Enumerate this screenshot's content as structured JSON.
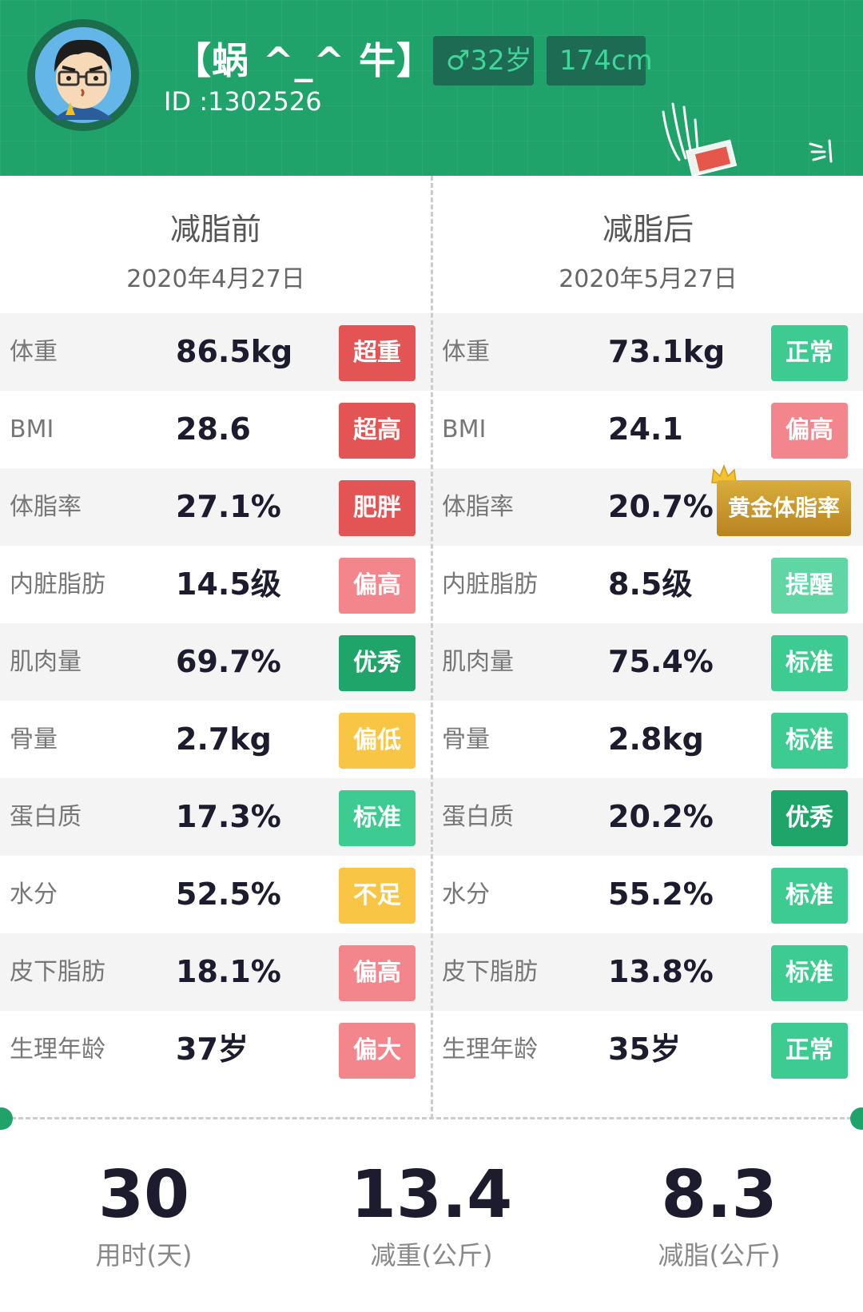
{
  "profile": {
    "name": "【蜗 ^_^ 牛】",
    "id_text": "ID :1302526",
    "gender_age": "♂32岁",
    "height": "174cm"
  },
  "before": {
    "title": "减脂前",
    "date": "2020年4月27日",
    "rows": [
      {
        "label": "体重",
        "value": "86.5kg",
        "status": "超重",
        "color": "#e35454"
      },
      {
        "label": "BMI",
        "value": "28.6",
        "status": "超高",
        "color": "#e35454"
      },
      {
        "label": "体脂率",
        "value": "27.1%",
        "status": "肥胖",
        "color": "#e35454"
      },
      {
        "label": "内脏脂肪",
        "value": "14.5级",
        "status": "偏高",
        "color": "#f3868d"
      },
      {
        "label": "肌肉量",
        "value": "69.7%",
        "status": "优秀",
        "color": "#1fa46a"
      },
      {
        "label": "骨量",
        "value": "2.7kg",
        "status": "偏低",
        "color": "#f8c545"
      },
      {
        "label": "蛋白质",
        "value": "17.3%",
        "status": "标准",
        "color": "#3dcb92"
      },
      {
        "label": "水分",
        "value": "52.5%",
        "status": "不足",
        "color": "#f8c545"
      },
      {
        "label": "皮下脂肪",
        "value": "18.1%",
        "status": "偏高",
        "color": "#f3868d"
      },
      {
        "label": "生理年龄",
        "value": "37岁",
        "status": "偏大",
        "color": "#f3868d"
      }
    ]
  },
  "after": {
    "title": "减脂后",
    "date": "2020年5月27日",
    "rows": [
      {
        "label": "体重",
        "value": "73.1kg",
        "status": "正常",
        "color": "#3dcb92"
      },
      {
        "label": "BMI",
        "value": "24.1",
        "status": "偏高",
        "color": "#f3868d"
      },
      {
        "label": "体脂率",
        "value": "20.7%",
        "status": "黄金体脂率",
        "color": "#c99a2e"
      },
      {
        "label": "内脏脂肪",
        "value": "8.5级",
        "status": "提醒",
        "color": "#5fd6a4"
      },
      {
        "label": "肌肉量",
        "value": "75.4%",
        "status": "标准",
        "color": "#3dcb92"
      },
      {
        "label": "骨量",
        "value": "2.8kg",
        "status": "标准",
        "color": "#3dcb92"
      },
      {
        "label": "蛋白质",
        "value": "20.2%",
        "status": "优秀",
        "color": "#1fa46a"
      },
      {
        "label": "水分",
        "value": "55.2%",
        "status": "标准",
        "color": "#3dcb92"
      },
      {
        "label": "皮下脂肪",
        "value": "13.8%",
        "status": "标准",
        "color": "#3dcb92"
      },
      {
        "label": "生理年龄",
        "value": "35岁",
        "status": "正常",
        "color": "#3dcb92"
      }
    ]
  },
  "summary": [
    {
      "value": "30",
      "caption": "用时(天)"
    },
    {
      "value": "13.4",
      "caption": "减重(公斤)"
    },
    {
      "value": "8.3",
      "caption": "减脂(公斤)"
    }
  ],
  "colors": {
    "header": "#20a36a",
    "red": "#e35454",
    "pink": "#f3868d",
    "green_dark": "#1fa46a",
    "green": "#3dcb92",
    "yellow": "#f8c545",
    "gold": "#c99a2e"
  }
}
